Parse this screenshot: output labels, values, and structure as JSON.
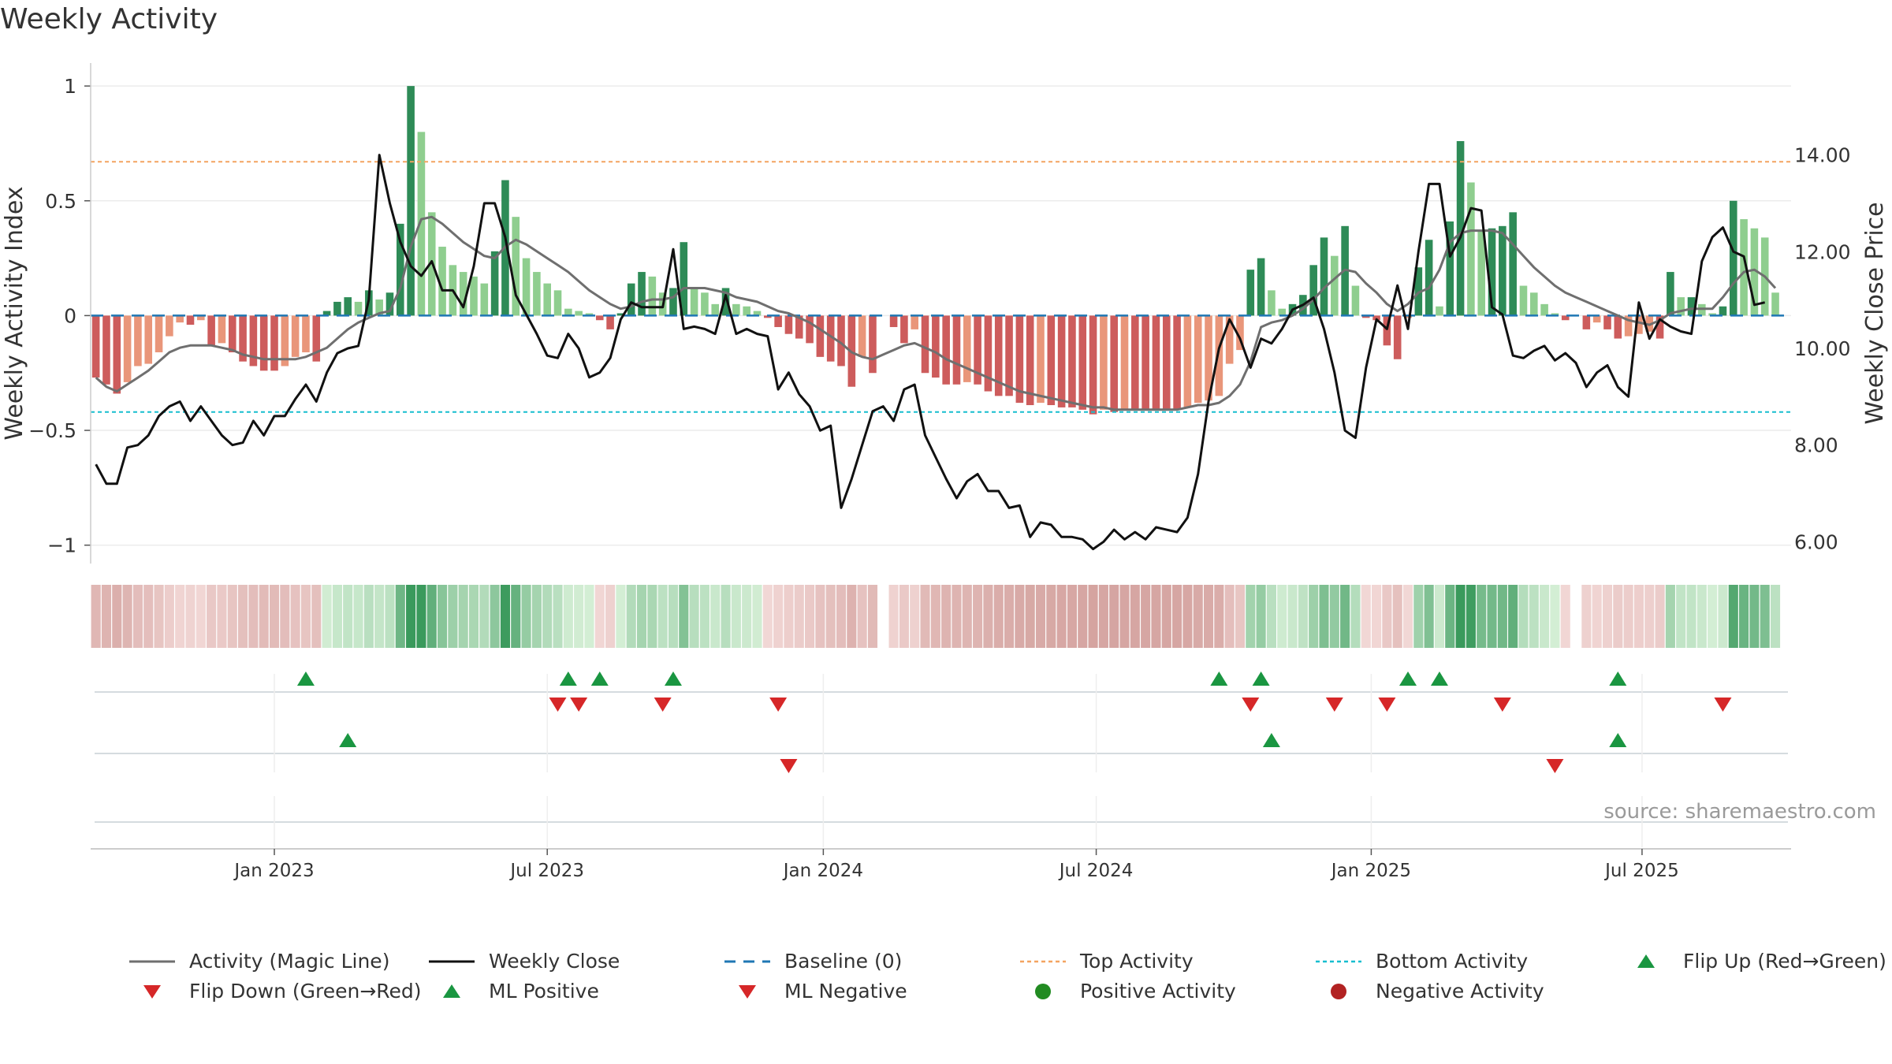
{
  "title": "Weekly Activity",
  "source": "source: sharemaestro.com",
  "colors": {
    "pos_dark": "#2e8b57",
    "pos_light": "#8fce8f",
    "neg_dark": "#cd5c5c",
    "neg_light": "#e9967a",
    "magic": "#6f6f6f",
    "close": "#111111",
    "baseline": "#1f77b4",
    "top": "#f4a460",
    "bottom": "#17becf",
    "flip_up": "#1a9641",
    "flip_down": "#d62728"
  },
  "legend": [
    {
      "key": "magic",
      "label": "Activity (Magic Line)"
    },
    {
      "key": "close",
      "label": "Weekly Close"
    },
    {
      "key": "baseline",
      "label": "Baseline (0)"
    },
    {
      "key": "top",
      "label": "Top Activity"
    },
    {
      "key": "bottom",
      "label": "Bottom Activity"
    },
    {
      "key": "flipup",
      "label": "Flip Up (Red→Green)"
    },
    {
      "key": "flipdown",
      "label": "Flip Down (Green→Red)"
    },
    {
      "key": "mlpos",
      "label": "ML Positive"
    },
    {
      "key": "mlneg",
      "label": "ML Negative"
    },
    {
      "key": "posact",
      "label": "Positive Activity"
    },
    {
      "key": "negact",
      "label": "Negative Activity"
    }
  ],
  "chart_data": {
    "type": "bar",
    "title": "Weekly Activity",
    "ylabel": "Weekly Activity Index",
    "y2label": "Weekly Close Price",
    "ylim": [
      -1.08,
      1.1
    ],
    "y2lim": [
      5.55,
      15.9
    ],
    "yticks": [
      1,
      0.5,
      0,
      -0.5,
      -1
    ],
    "ytick_labels": [
      "1",
      "0.5",
      "0",
      "−0.5",
      "−1"
    ],
    "y2ticks": [
      14,
      12,
      10,
      8,
      6
    ],
    "y2tick_labels": [
      "14.00",
      "12.00",
      "10.00",
      "8.00",
      "6.00"
    ],
    "x_start": "2022-09-04",
    "x_end": "2025-09-05",
    "xticks": [
      "Jan 2023",
      "Jul 2023",
      "Jan 2024",
      "Jul 2024",
      "Jan 2025",
      "Jul 2025"
    ],
    "xtick_weeks": [
      17,
      43,
      69.3,
      95.3,
      121.5,
      147.3
    ],
    "top_activity": 0.67,
    "bottom_activity": -0.42,
    "baseline": 0,
    "activity": [
      -0.27,
      -0.3,
      -0.34,
      -0.29,
      -0.22,
      -0.21,
      -0.16,
      -0.09,
      -0.03,
      -0.04,
      -0.02,
      -0.13,
      -0.12,
      -0.16,
      -0.2,
      -0.22,
      -0.24,
      -0.24,
      -0.22,
      -0.18,
      -0.16,
      -0.2,
      0.02,
      0.06,
      0.08,
      0.06,
      0.11,
      0.07,
      0.1,
      0.4,
      1.0,
      0.8,
      0.45,
      0.3,
      0.22,
      0.19,
      0.17,
      0.14,
      0.28,
      0.59,
      0.43,
      0.25,
      0.19,
      0.14,
      0.11,
      0.03,
      0.02,
      0.01,
      -0.02,
      -0.06,
      0.01,
      0.14,
      0.19,
      0.17,
      0.1,
      0.12,
      0.32,
      0.12,
      0.1,
      0.05,
      0.12,
      0.05,
      0.04,
      0.02,
      -0.01,
      -0.05,
      -0.08,
      -0.1,
      -0.12,
      -0.18,
      -0.2,
      -0.22,
      -0.31,
      -0.18,
      -0.25,
      0.0,
      -0.05,
      -0.12,
      -0.06,
      -0.25,
      -0.27,
      -0.3,
      -0.3,
      -0.29,
      -0.3,
      -0.33,
      -0.35,
      -0.35,
      -0.38,
      -0.39,
      -0.38,
      -0.39,
      -0.4,
      -0.4,
      -0.41,
      -0.43,
      -0.41,
      -0.42,
      -0.41,
      -0.41,
      -0.41,
      -0.41,
      -0.41,
      -0.41,
      -0.4,
      -0.38,
      -0.37,
      -0.35,
      -0.21,
      -0.15,
      0.2,
      0.25,
      0.11,
      0.03,
      0.05,
      0.09,
      0.22,
      0.34,
      0.26,
      0.39,
      0.13,
      -0.01,
      -0.02,
      -0.13,
      -0.19,
      -0.01,
      0.21,
      0.33,
      0.04,
      0.41,
      0.76,
      0.58,
      0.37,
      0.38,
      0.39,
      0.45,
      0.13,
      0.1,
      0.05,
      0.01,
      -0.02,
      0.0,
      -0.06,
      -0.03,
      -0.06,
      -0.1,
      -0.09,
      -0.08,
      -0.07,
      -0.1,
      0.19,
      0.08,
      0.08,
      0.05,
      0.01,
      0.04,
      0.5,
      0.42,
      0.38,
      0.34,
      0.1,
      0.0
    ],
    "magic_line": [
      -0.27,
      -0.31,
      -0.33,
      -0.3,
      -0.27,
      -0.24,
      -0.2,
      -0.16,
      -0.14,
      -0.13,
      -0.13,
      -0.13,
      -0.14,
      -0.15,
      -0.17,
      -0.18,
      -0.19,
      -0.19,
      -0.19,
      -0.19,
      -0.18,
      -0.16,
      -0.14,
      -0.1,
      -0.06,
      -0.03,
      -0.01,
      0.01,
      0.02,
      0.12,
      0.3,
      0.42,
      0.43,
      0.4,
      0.36,
      0.32,
      0.29,
      0.26,
      0.25,
      0.3,
      0.33,
      0.31,
      0.28,
      0.25,
      0.22,
      0.19,
      0.15,
      0.11,
      0.08,
      0.05,
      0.03,
      0.04,
      0.06,
      0.07,
      0.07,
      0.08,
      0.12,
      0.12,
      0.12,
      0.11,
      0.1,
      0.08,
      0.07,
      0.06,
      0.04,
      0.02,
      0.01,
      -0.01,
      -0.03,
      -0.06,
      -0.09,
      -0.12,
      -0.16,
      -0.18,
      -0.19,
      -0.17,
      -0.15,
      -0.13,
      -0.12,
      -0.14,
      -0.16,
      -0.19,
      -0.21,
      -0.23,
      -0.25,
      -0.27,
      -0.29,
      -0.31,
      -0.33,
      -0.34,
      -0.35,
      -0.36,
      -0.37,
      -0.38,
      -0.39,
      -0.4,
      -0.4,
      -0.41,
      -0.41,
      -0.41,
      -0.41,
      -0.41,
      -0.41,
      -0.41,
      -0.4,
      -0.39,
      -0.39,
      -0.38,
      -0.35,
      -0.3,
      -0.2,
      -0.05,
      -0.03,
      -0.02,
      0.0,
      0.03,
      0.07,
      0.12,
      0.16,
      0.2,
      0.19,
      0.14,
      0.1,
      0.05,
      0.02,
      0.05,
      0.1,
      0.12,
      0.2,
      0.32,
      0.36,
      0.37,
      0.37,
      0.37,
      0.36,
      0.31,
      0.26,
      0.21,
      0.17,
      0.13,
      0.1,
      0.08,
      0.06,
      0.04,
      0.02,
      0.0,
      -0.02,
      -0.03,
      -0.04,
      -0.02,
      0.01,
      0.02,
      0.03,
      0.03,
      0.03,
      0.08,
      0.14,
      0.19,
      0.2,
      0.17,
      0.12
    ],
    "weekly_close": [
      7.6,
      7.2,
      7.2,
      7.95,
      8.0,
      8.2,
      8.6,
      8.8,
      8.9,
      8.5,
      8.8,
      8.5,
      8.2,
      8.0,
      8.05,
      8.5,
      8.2,
      8.6,
      8.6,
      8.95,
      9.25,
      8.9,
      9.5,
      9.9,
      10.0,
      10.05,
      11.0,
      14.0,
      13.0,
      12.2,
      11.7,
      11.5,
      11.8,
      11.2,
      11.2,
      10.85,
      11.7,
      13.0,
      13.0,
      12.3,
      11.1,
      10.7,
      10.3,
      9.85,
      9.8,
      10.3,
      10.0,
      9.4,
      9.5,
      9.8,
      10.6,
      10.95,
      10.85,
      10.85,
      10.85,
      12.05,
      10.4,
      10.45,
      10.4,
      10.3,
      11.1,
      10.3,
      10.4,
      10.3,
      10.25,
      9.15,
      9.5,
      9.05,
      8.8,
      8.3,
      8.4,
      6.7,
      7.3,
      8.0,
      8.7,
      8.8,
      8.5,
      9.15,
      9.25,
      8.2,
      7.75,
      7.3,
      6.9,
      7.25,
      7.4,
      7.05,
      7.05,
      6.7,
      6.75,
      6.1,
      6.4,
      6.35,
      6.1,
      6.1,
      6.05,
      5.85,
      6.0,
      6.25,
      6.05,
      6.2,
      6.05,
      6.3,
      6.25,
      6.2,
      6.5,
      7.4,
      8.9,
      10.0,
      10.6,
      10.2,
      9.6,
      10.2,
      10.1,
      10.4,
      10.8,
      10.9,
      11.05,
      10.4,
      9.5,
      8.3,
      8.15,
      9.6,
      10.6,
      10.4,
      11.3,
      10.4,
      12.0,
      13.4,
      13.4,
      11.9,
      12.3,
      12.9,
      12.85,
      10.85,
      10.7,
      9.85,
      9.8,
      9.95,
      10.05,
      9.75,
      9.9,
      9.7,
      9.2,
      9.5,
      9.65,
      9.2,
      9.0,
      10.95,
      10.2,
      10.6,
      10.45,
      10.35,
      10.3,
      11.8,
      12.3,
      12.5,
      12.0,
      11.9,
      10.9,
      10.95
    ],
    "signals": {
      "flip_up_weeks": [
        20,
        45,
        48,
        55,
        107,
        111,
        125,
        128,
        145
      ],
      "flip_down_weeks": [
        44,
        46,
        54,
        65,
        110,
        118,
        123,
        134,
        155
      ],
      "ml_positive_weeks": [
        24,
        112,
        145
      ],
      "ml_negative_weeks": [
        66,
        139
      ]
    }
  }
}
